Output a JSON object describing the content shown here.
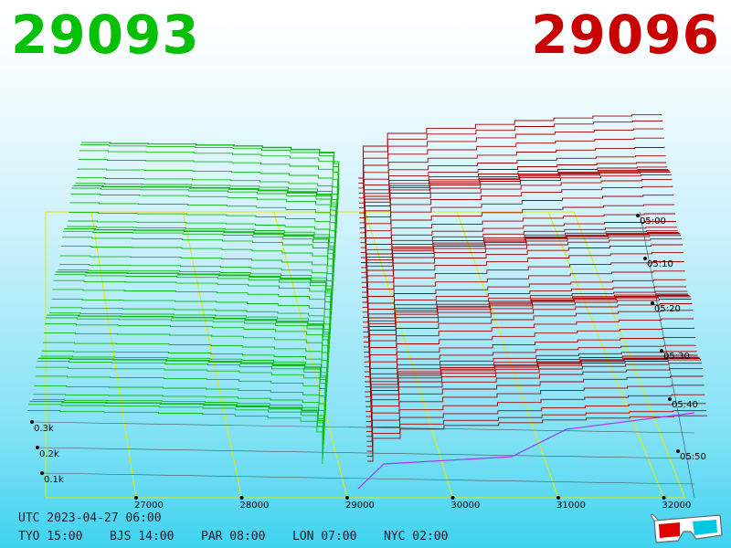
{
  "header": {
    "bid_price": "29093",
    "ask_price": "29096"
  },
  "footer": {
    "utc": "UTC 2023-04-27 06:00",
    "zones": [
      {
        "label": "TYO 15:00"
      },
      {
        "label": "BJS 14:00"
      },
      {
        "label": "PAR 08:00"
      },
      {
        "label": "LON 07:00"
      },
      {
        "label": "NYC 02:00"
      }
    ]
  },
  "colors": {
    "bid": "#11bb11",
    "ask": "#aa0000",
    "grid": "#e8e800",
    "baseline": "#aa33ff"
  },
  "icons": {
    "glasses": "3d-glasses-icon"
  },
  "chart_data": {
    "type": "area",
    "title": "",
    "price_axis": {
      "ticks": [
        "27000",
        "28000",
        "29000",
        "30000",
        "31000",
        "32000"
      ],
      "range": [
        26000,
        32200
      ]
    },
    "volume_axis": {
      "ticks": [
        "0.1k",
        "0.2k",
        "0.3k"
      ]
    },
    "time_axis": {
      "ticks": [
        "05:00",
        "05:10",
        "05:20",
        "05:30",
        "05:40",
        "05:50"
      ]
    },
    "series": [
      {
        "side": "bid",
        "levels": 60,
        "color": "#11bb11"
      },
      {
        "side": "ask",
        "levels": 60,
        "color": "#aa0000"
      }
    ]
  }
}
